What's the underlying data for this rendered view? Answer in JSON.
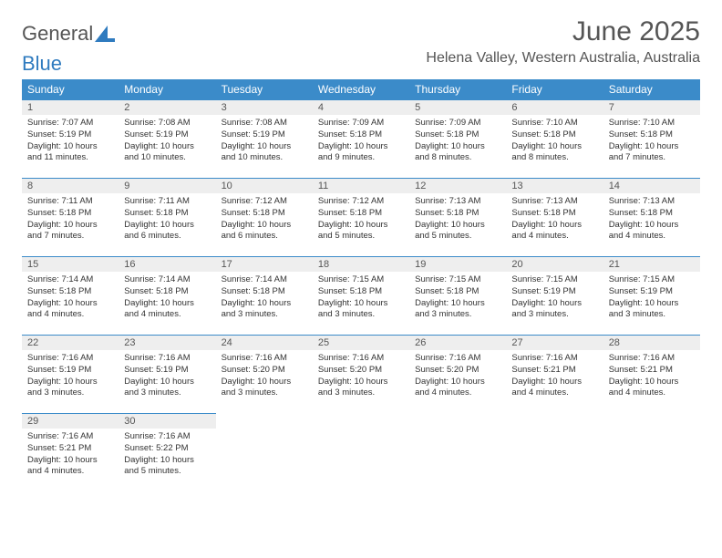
{
  "logo": {
    "text1": "General",
    "text2": "Blue"
  },
  "title": "June 2025",
  "subtitle": "Helena Valley, Western Australia, Australia",
  "colors": {
    "header_bg": "#3b8bc9",
    "header_fg": "#ffffff",
    "daynum_bg": "#eeeeee",
    "daynum_border": "#3b8bc9",
    "text": "#333333",
    "muted": "#555555"
  },
  "fonts": {
    "title_size_pt": 22,
    "subtitle_size_pt": 12,
    "header_size_pt": 9,
    "body_size_pt": 7
  },
  "weekdays": [
    "Sunday",
    "Monday",
    "Tuesday",
    "Wednesday",
    "Thursday",
    "Friday",
    "Saturday"
  ],
  "days": [
    {
      "n": "1",
      "sr": "7:07 AM",
      "ss": "5:19 PM",
      "dl": "10 hours and 11 minutes."
    },
    {
      "n": "2",
      "sr": "7:08 AM",
      "ss": "5:19 PM",
      "dl": "10 hours and 10 minutes."
    },
    {
      "n": "3",
      "sr": "7:08 AM",
      "ss": "5:19 PM",
      "dl": "10 hours and 10 minutes."
    },
    {
      "n": "4",
      "sr": "7:09 AM",
      "ss": "5:18 PM",
      "dl": "10 hours and 9 minutes."
    },
    {
      "n": "5",
      "sr": "7:09 AM",
      "ss": "5:18 PM",
      "dl": "10 hours and 8 minutes."
    },
    {
      "n": "6",
      "sr": "7:10 AM",
      "ss": "5:18 PM",
      "dl": "10 hours and 8 minutes."
    },
    {
      "n": "7",
      "sr": "7:10 AM",
      "ss": "5:18 PM",
      "dl": "10 hours and 7 minutes."
    },
    {
      "n": "8",
      "sr": "7:11 AM",
      "ss": "5:18 PM",
      "dl": "10 hours and 7 minutes."
    },
    {
      "n": "9",
      "sr": "7:11 AM",
      "ss": "5:18 PM",
      "dl": "10 hours and 6 minutes."
    },
    {
      "n": "10",
      "sr": "7:12 AM",
      "ss": "5:18 PM",
      "dl": "10 hours and 6 minutes."
    },
    {
      "n": "11",
      "sr": "7:12 AM",
      "ss": "5:18 PM",
      "dl": "10 hours and 5 minutes."
    },
    {
      "n": "12",
      "sr": "7:13 AM",
      "ss": "5:18 PM",
      "dl": "10 hours and 5 minutes."
    },
    {
      "n": "13",
      "sr": "7:13 AM",
      "ss": "5:18 PM",
      "dl": "10 hours and 4 minutes."
    },
    {
      "n": "14",
      "sr": "7:13 AM",
      "ss": "5:18 PM",
      "dl": "10 hours and 4 minutes."
    },
    {
      "n": "15",
      "sr": "7:14 AM",
      "ss": "5:18 PM",
      "dl": "10 hours and 4 minutes."
    },
    {
      "n": "16",
      "sr": "7:14 AM",
      "ss": "5:18 PM",
      "dl": "10 hours and 4 minutes."
    },
    {
      "n": "17",
      "sr": "7:14 AM",
      "ss": "5:18 PM",
      "dl": "10 hours and 3 minutes."
    },
    {
      "n": "18",
      "sr": "7:15 AM",
      "ss": "5:18 PM",
      "dl": "10 hours and 3 minutes."
    },
    {
      "n": "19",
      "sr": "7:15 AM",
      "ss": "5:18 PM",
      "dl": "10 hours and 3 minutes."
    },
    {
      "n": "20",
      "sr": "7:15 AM",
      "ss": "5:19 PM",
      "dl": "10 hours and 3 minutes."
    },
    {
      "n": "21",
      "sr": "7:15 AM",
      "ss": "5:19 PM",
      "dl": "10 hours and 3 minutes."
    },
    {
      "n": "22",
      "sr": "7:16 AM",
      "ss": "5:19 PM",
      "dl": "10 hours and 3 minutes."
    },
    {
      "n": "23",
      "sr": "7:16 AM",
      "ss": "5:19 PM",
      "dl": "10 hours and 3 minutes."
    },
    {
      "n": "24",
      "sr": "7:16 AM",
      "ss": "5:20 PM",
      "dl": "10 hours and 3 minutes."
    },
    {
      "n": "25",
      "sr": "7:16 AM",
      "ss": "5:20 PM",
      "dl": "10 hours and 3 minutes."
    },
    {
      "n": "26",
      "sr": "7:16 AM",
      "ss": "5:20 PM",
      "dl": "10 hours and 4 minutes."
    },
    {
      "n": "27",
      "sr": "7:16 AM",
      "ss": "5:21 PM",
      "dl": "10 hours and 4 minutes."
    },
    {
      "n": "28",
      "sr": "7:16 AM",
      "ss": "5:21 PM",
      "dl": "10 hours and 4 minutes."
    },
    {
      "n": "29",
      "sr": "7:16 AM",
      "ss": "5:21 PM",
      "dl": "10 hours and 4 minutes."
    },
    {
      "n": "30",
      "sr": "7:16 AM",
      "ss": "5:22 PM",
      "dl": "10 hours and 5 minutes."
    }
  ],
  "labels": {
    "sunrise": "Sunrise: ",
    "sunset": "Sunset: ",
    "daylight": "Daylight: "
  }
}
